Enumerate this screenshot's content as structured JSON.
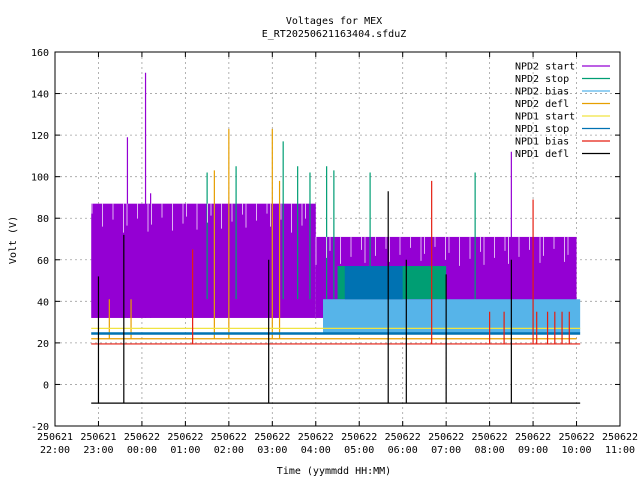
{
  "chart_data": {
    "type": "line",
    "title": "Voltages for MEX",
    "subtitle": "E_RT20250621163404.sfduZ",
    "xlabel": "Time (yymmdd HH:MM)",
    "ylabel": "Volt (V)",
    "xlim": [
      "250621 22:00",
      "250622 11:00"
    ],
    "ylim": [
      -20,
      160
    ],
    "grid": true,
    "legend_position": "top-right",
    "x_ticks": [
      {
        "date": "250621",
        "time": "22:00"
      },
      {
        "date": "250621",
        "time": "23:00"
      },
      {
        "date": "250622",
        "time": "00:00"
      },
      {
        "date": "250622",
        "time": "01:00"
      },
      {
        "date": "250622",
        "time": "02:00"
      },
      {
        "date": "250622",
        "time": "03:00"
      },
      {
        "date": "250622",
        "time": "04:00"
      },
      {
        "date": "250622",
        "time": "05:00"
      },
      {
        "date": "250622",
        "time": "06:00"
      },
      {
        "date": "250622",
        "time": "07:00"
      },
      {
        "date": "250622",
        "time": "08:00"
      },
      {
        "date": "250622",
        "time": "09:00"
      },
      {
        "date": "250622",
        "time": "10:00"
      },
      {
        "date": "250622",
        "time": "11:00"
      }
    ],
    "y_ticks": [
      "-20",
      "0",
      "20",
      "40",
      "60",
      "80",
      "100",
      "120",
      "140",
      "160"
    ],
    "series": [
      {
        "name": "NPD2 start",
        "color": "#9400d3",
        "base_segments": [
          {
            "x": [
              "250621 22:50",
              "250622 04:00"
            ],
            "y": [
              32,
              87
            ]
          },
          {
            "x": [
              "250622 04:00",
              "250622 10:00"
            ],
            "y": [
              32,
              71
            ]
          }
        ],
        "spikes": [
          {
            "x": "250621 23:40",
            "y": 119
          },
          {
            "x": "250622 00:05",
            "y": 150
          },
          {
            "x": "250622 00:12",
            "y": 92
          },
          {
            "x": "250622 08:30",
            "y": 112
          }
        ]
      },
      {
        "name": "NPD2 stop",
        "color": "#009e73",
        "base_segments": [
          {
            "x": [
              "250622 04:30",
              "250622 07:00"
            ],
            "y": [
              41,
              57
            ]
          }
        ],
        "spikes": [
          {
            "x": "250622 01:30",
            "y": 102
          },
          {
            "x": "250622 02:10",
            "y": 105
          },
          {
            "x": "250622 03:15",
            "y": 117
          },
          {
            "x": "250622 03:35",
            "y": 105
          },
          {
            "x": "250622 03:52",
            "y": 102
          },
          {
            "x": "250622 04:15",
            "y": 105
          },
          {
            "x": "250622 04:25",
            "y": 103
          },
          {
            "x": "250622 05:15",
            "y": 102
          },
          {
            "x": "250622 07:40",
            "y": 102
          }
        ]
      },
      {
        "name": "NPD2 bias",
        "color": "#56b4e9",
        "base_segments": [
          {
            "x": [
              "250622 04:10",
              "250622 10:05"
            ],
            "y": [
              25,
              41
            ]
          }
        ]
      },
      {
        "name": "NPD2 defl",
        "color": "#e69f00",
        "base_segments": [
          {
            "x": [
              "250621 22:50",
              "250622 10:00"
            ],
            "y": [
              22,
              22
            ]
          }
        ],
        "spikes": [
          {
            "x": "250621 23:15",
            "y": 41
          },
          {
            "x": "250621 23:45",
            "y": 41
          },
          {
            "x": "250622 01:40",
            "y": 103
          },
          {
            "x": "250622 02:00",
            "y": 123
          },
          {
            "x": "250622 03:00",
            "y": 123
          },
          {
            "x": "250622 03:10",
            "y": 98
          }
        ]
      },
      {
        "name": "NPD1 start",
        "color": "#f0e442",
        "base_segments": [
          {
            "x": [
              "250621 22:50",
              "250622 10:05"
            ],
            "y": [
              27,
              27
            ]
          }
        ]
      },
      {
        "name": "NPD1 stop",
        "color": "#0072b2",
        "base_segments": [
          {
            "x": [
              "250621 22:50",
              "250622 10:05"
            ],
            "y": [
              24.5,
              24.5
            ]
          },
          {
            "x": [
              "250622 04:40",
              "250622 06:00"
            ],
            "y": [
              41,
              57
            ]
          }
        ]
      },
      {
        "name": "NPD1 bias",
        "color": "#e51e10",
        "base_segments": [
          {
            "x": [
              "250621 22:50",
              "250622 10:05"
            ],
            "y": [
              19.5,
              19.5
            ]
          }
        ],
        "spikes": [
          {
            "x": "250622 01:10",
            "y": 65
          },
          {
            "x": "250622 06:40",
            "y": 98
          },
          {
            "x": "250622 09:00",
            "y": 89
          },
          {
            "x": "250622 09:05",
            "y": 35
          },
          {
            "x": "250622 09:20",
            "y": 35
          },
          {
            "x": "250622 09:30",
            "y": 35
          },
          {
            "x": "250622 09:40",
            "y": 35
          },
          {
            "x": "250622 09:50",
            "y": 35
          },
          {
            "x": "250622 08:00",
            "y": 35
          },
          {
            "x": "250622 08:20",
            "y": 35
          }
        ]
      },
      {
        "name": "NPD1 defl",
        "color": "#000000",
        "base_segments": [
          {
            "x": [
              "250621 22:50",
              "250622 10:05"
            ],
            "y": [
              -9,
              -9
            ]
          }
        ],
        "spikes": [
          {
            "x": "250621 23:00",
            "y": 52
          },
          {
            "x": "250621 23:35",
            "y": 72
          },
          {
            "x": "250622 02:55",
            "y": 60
          },
          {
            "x": "250622 05:40",
            "y": 93
          },
          {
            "x": "250622 06:05",
            "y": 60
          },
          {
            "x": "250622 07:00",
            "y": 53
          },
          {
            "x": "250622 08:30",
            "y": 60
          }
        ]
      }
    ]
  }
}
